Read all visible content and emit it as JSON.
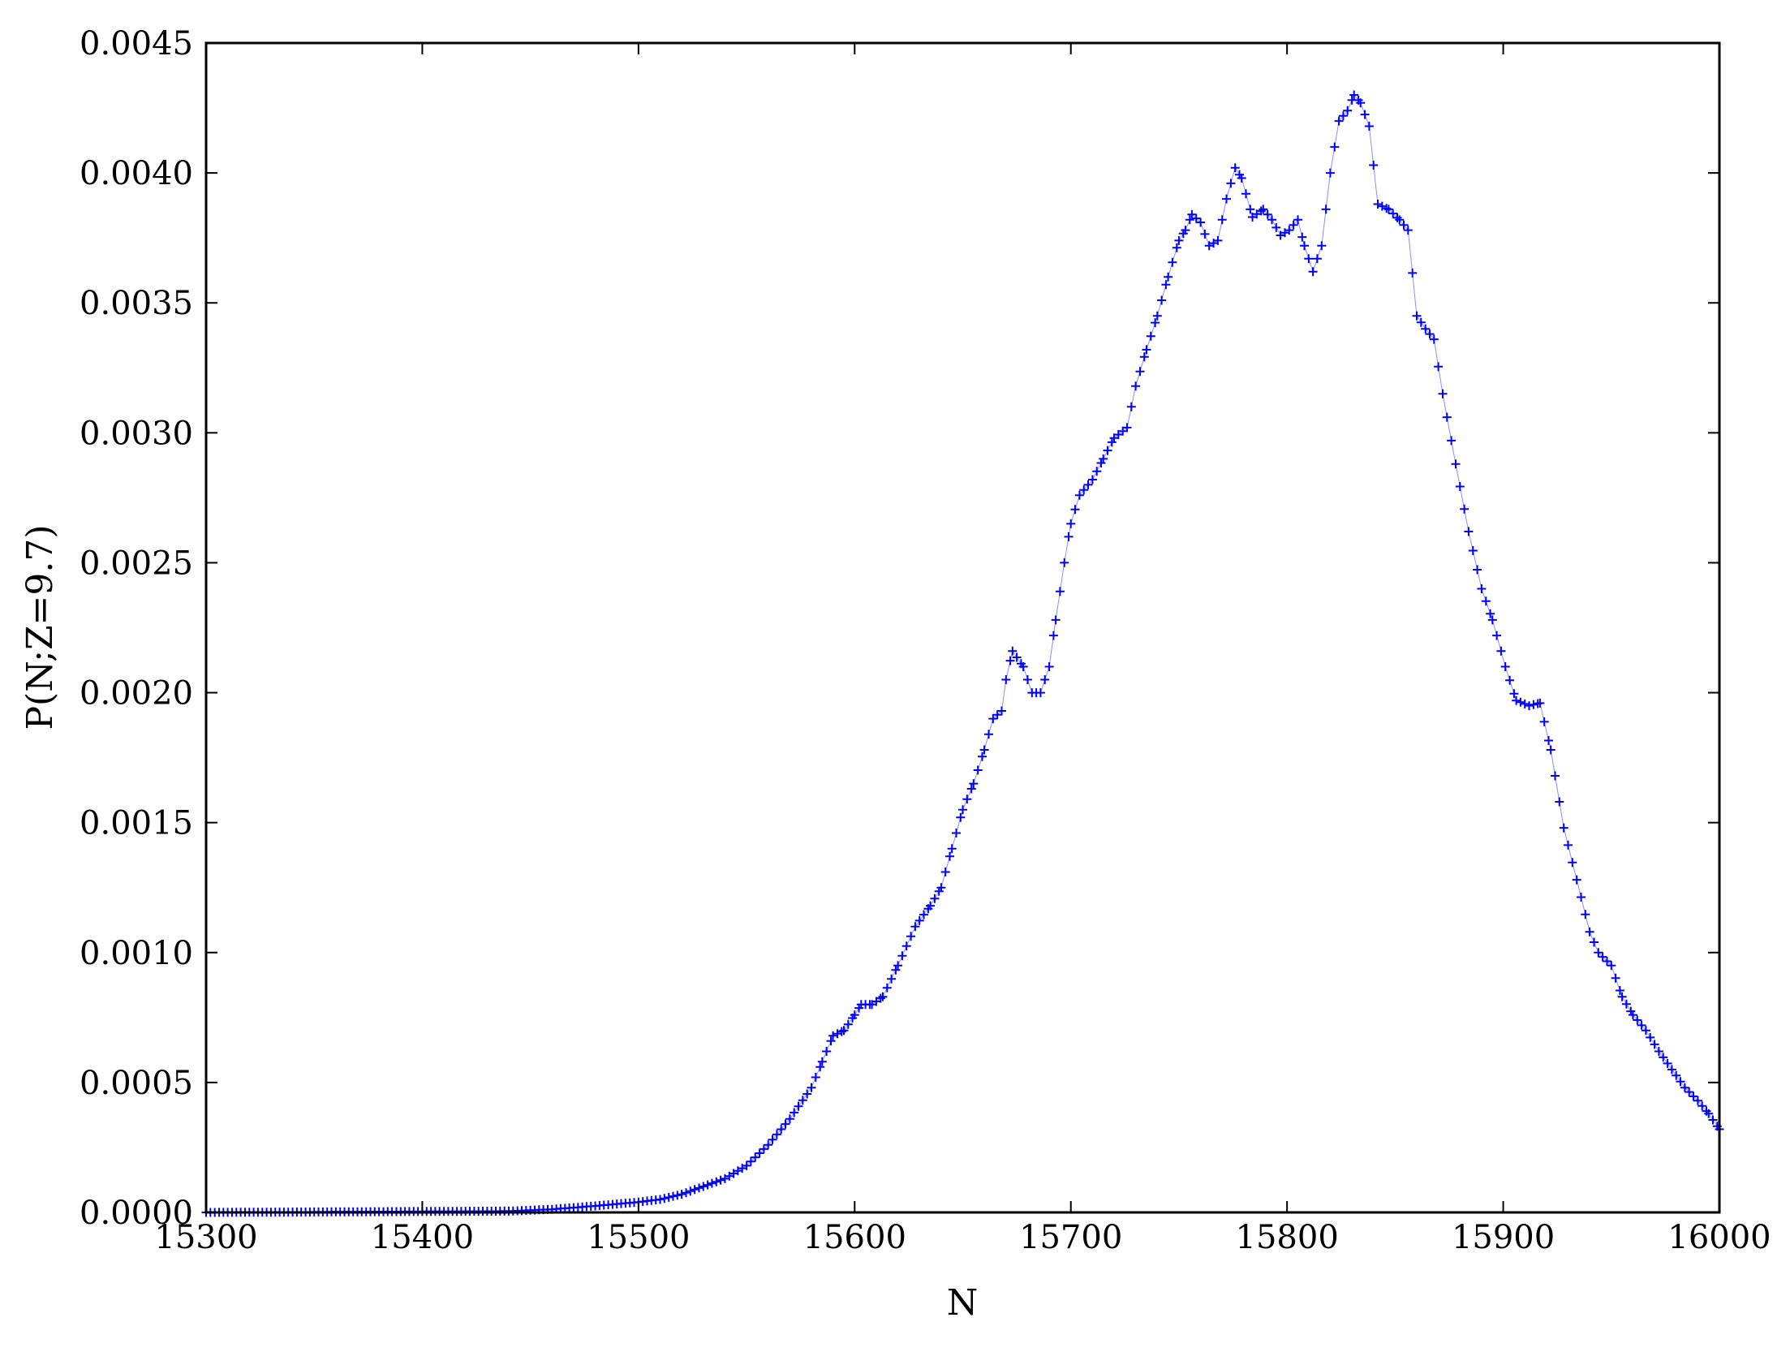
{
  "chart_data": {
    "type": "scatter",
    "title": "",
    "xlabel": "N",
    "ylabel": "P(N;Z=9.7)",
    "xlim": [
      15300,
      16000
    ],
    "ylim": [
      0.0,
      0.0045
    ],
    "xticks": [
      15300,
      15400,
      15500,
      15600,
      15700,
      15800,
      15900,
      16000
    ],
    "xtick_labels": [
      "15300",
      "15400",
      "15500",
      "15600",
      "15700",
      "15800",
      "15900",
      "16000"
    ],
    "yticks": [
      0.0,
      0.0005,
      0.001,
      0.0015,
      0.002,
      0.0025,
      0.003,
      0.0035,
      0.004,
      0.0045
    ],
    "ytick_labels": [
      "0.0000",
      "0.0005",
      "0.0010",
      "0.0015",
      "0.0020",
      "0.0025",
      "0.0030",
      "0.0035",
      "0.0040",
      "0.0045"
    ],
    "grid": false,
    "legend": false,
    "marker": "plus",
    "color": "#0000ff",
    "connecting_line": true,
    "x_step": 2,
    "series": [
      {
        "name": "",
        "points": [
          [
            15300,
            0.0
          ],
          [
            15440,
            5e-06
          ],
          [
            15460,
            1.2e-05
          ],
          [
            15480,
            2.5e-05
          ],
          [
            15500,
            4e-05
          ],
          [
            15510,
            5e-05
          ],
          [
            15520,
            7e-05
          ],
          [
            15530,
            0.0001
          ],
          [
            15540,
            0.00013
          ],
          [
            15550,
            0.00018
          ],
          [
            15560,
            0.00026
          ],
          [
            15570,
            0.00036
          ],
          [
            15580,
            0.00048
          ],
          [
            15585,
            0.00058
          ],
          [
            15590,
            0.00068
          ],
          [
            15595,
            0.0007
          ],
          [
            15600,
            0.00076
          ],
          [
            15603,
            0.0008
          ],
          [
            15608,
            0.0008
          ],
          [
            15613,
            0.00083
          ],
          [
            15620,
            0.00095
          ],
          [
            15628,
            0.0011
          ],
          [
            15635,
            0.00118
          ],
          [
            15640,
            0.00125
          ],
          [
            15645,
            0.0014
          ],
          [
            15650,
            0.00155
          ],
          [
            15655,
            0.00165
          ],
          [
            15660,
            0.00178
          ],
          [
            15664,
            0.0019
          ],
          [
            15668,
            0.00193
          ],
          [
            15670,
            0.00205
          ],
          [
            15673,
            0.00216
          ],
          [
            15678,
            0.0021
          ],
          [
            15682,
            0.002
          ],
          [
            15686,
            0.002
          ],
          [
            15690,
            0.0021
          ],
          [
            15693,
            0.00228
          ],
          [
            15697,
            0.0025
          ],
          [
            15700,
            0.00265
          ],
          [
            15704,
            0.00276
          ],
          [
            15710,
            0.00282
          ],
          [
            15715,
            0.0029
          ],
          [
            15720,
            0.00298
          ],
          [
            15726,
            0.00302
          ],
          [
            15730,
            0.00318
          ],
          [
            15735,
            0.00332
          ],
          [
            15740,
            0.00345
          ],
          [
            15745,
            0.0036
          ],
          [
            15750,
            0.00374
          ],
          [
            15753,
            0.00378
          ],
          [
            15756,
            0.00384
          ],
          [
            15760,
            0.00381
          ],
          [
            15764,
            0.00372
          ],
          [
            15768,
            0.00374
          ],
          [
            15772,
            0.0039
          ],
          [
            15776,
            0.00402
          ],
          [
            15779,
            0.00398
          ],
          [
            15784,
            0.00383
          ],
          [
            15789,
            0.00386
          ],
          [
            15793,
            0.00382
          ],
          [
            15797,
            0.00376
          ],
          [
            15801,
            0.00378
          ],
          [
            15805,
            0.00382
          ],
          [
            15808,
            0.00372
          ],
          [
            15812,
            0.00362
          ],
          [
            15816,
            0.00372
          ],
          [
            15820,
            0.004
          ],
          [
            15824,
            0.0042
          ],
          [
            15828,
            0.00424
          ],
          [
            15831,
            0.0043
          ],
          [
            15834,
            0.00427
          ],
          [
            15838,
            0.00418
          ],
          [
            15842,
            0.00388
          ],
          [
            15847,
            0.00386
          ],
          [
            15852,
            0.00382
          ],
          [
            15856,
            0.00378
          ],
          [
            15860,
            0.00345
          ],
          [
            15864,
            0.0034
          ],
          [
            15868,
            0.00336
          ],
          [
            15872,
            0.00315
          ],
          [
            15878,
            0.00288
          ],
          [
            15884,
            0.00262
          ],
          [
            15890,
            0.0024
          ],
          [
            15895,
            0.00228
          ],
          [
            15901,
            0.0021
          ],
          [
            15906,
            0.00197
          ],
          [
            15912,
            0.00195
          ],
          [
            15917,
            0.00196
          ],
          [
            15922,
            0.00178
          ],
          [
            15928,
            0.00148
          ],
          [
            15934,
            0.00128
          ],
          [
            15940,
            0.00108
          ],
          [
            15944,
            0.001
          ],
          [
            15950,
            0.00095
          ],
          [
            15955,
            0.00083
          ],
          [
            15960,
            0.00076
          ],
          [
            15966,
            0.0007
          ],
          [
            15972,
            0.00062
          ],
          [
            15978,
            0.00055
          ],
          [
            15984,
            0.00048
          ],
          [
            15990,
            0.00043
          ],
          [
            15995,
            0.00038
          ],
          [
            16000,
            0.00032
          ]
        ]
      }
    ]
  }
}
